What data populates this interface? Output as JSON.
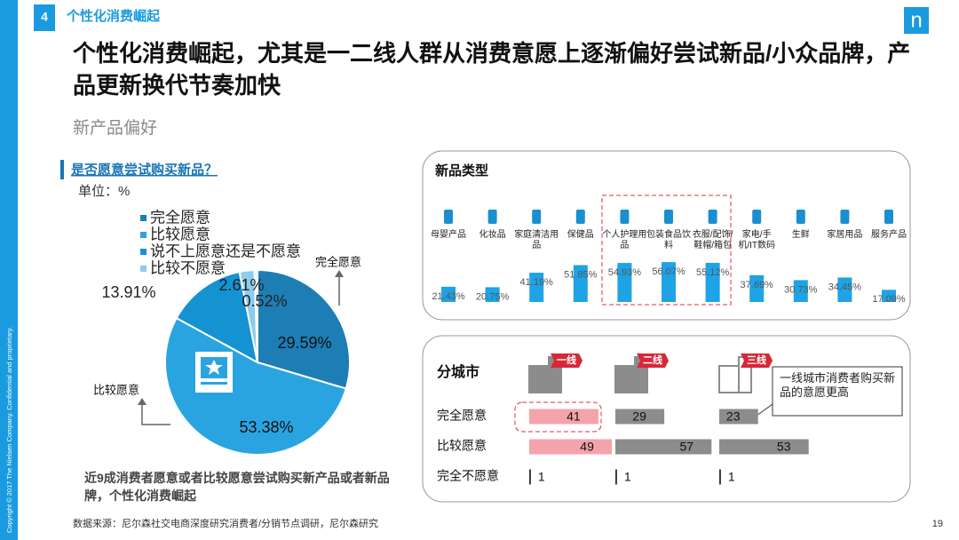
{
  "header": {
    "page_number": "4",
    "section": "个性化消费崛起",
    "logo": "n"
  },
  "title": "个性化消费崛起，尤其是一二线人群从消费意愿上逐渐偏好尝试新品/小众品牌，产品更新换代节奏加快",
  "subtitle": "新产品偏好",
  "chart_data": [
    {
      "type": "pie",
      "title": "是否愿意尝试购买新品？",
      "unit": "单位：%",
      "categories": [
        "完全愿意",
        "比较愿意",
        "说不上愿意还是不愿意",
        "比较不愿意",
        null
      ],
      "values": [
        29.59,
        53.38,
        13.91,
        2.61,
        0.52
      ],
      "value_labels": [
        "29.59%",
        "53.38%",
        "13.91%",
        "2.61%",
        "0.52%"
      ],
      "colors": [
        "#1d7db5",
        "#2aa4e0",
        "#1592d2",
        "#8ccdef",
        "#e6f4fb"
      ],
      "annotations": [
        "完全愿意",
        "比较愿意"
      ],
      "note": "近9成消费者愿意或者比较愿意尝试购买新产品或者新品牌，个性化消费崛起"
    },
    {
      "type": "bar",
      "title": "新品类型",
      "categories": [
        "母婴产品",
        "化妆品",
        "家庭清洁用品",
        "保健品",
        "个人护理用品",
        "包装食品饮料",
        "衣服/配饰/鞋帽/箱包",
        "家电/手机/IT数码",
        "生鲜",
        "家居用品",
        "服务产品"
      ],
      "values": [
        21.43,
        20.75,
        41.19,
        51.85,
        54.93,
        56.07,
        55.12,
        37.69,
        30.73,
        34.45,
        17.09
      ],
      "value_labels": [
        "21.43%",
        "20.75%",
        "41.19%",
        "51.85%",
        "54.93%",
        "56.07%",
        "55.12%",
        "37.69%",
        "30.73%",
        "34.45%",
        "17.09%"
      ],
      "color": "#1ea3e6"
    },
    {
      "type": "hbar",
      "title": "分城市",
      "categories": [
        "完全愿意",
        "比较愿意",
        "完全不愿意"
      ],
      "series": [
        {
          "name": "一线",
          "color": "#f5a3ab",
          "values": [
            41,
            49,
            1
          ]
        },
        {
          "name": "二线",
          "color": "#8c8c8c",
          "values": [
            29,
            57,
            1
          ]
        },
        {
          "name": "三线",
          "color": "#8c8c8c",
          "values": [
            23,
            53,
            1
          ]
        }
      ],
      "annotation": "一线城市消费者购买新品的意愿更高"
    }
  ],
  "footer": {
    "source": "数据来源：尼尔森社交电商深度研究消费者/分销节点调研，尼尔森研究",
    "page": "19",
    "copyright": "Copyright © 2017 The Nielsen Company. Confidential and proprietary."
  }
}
